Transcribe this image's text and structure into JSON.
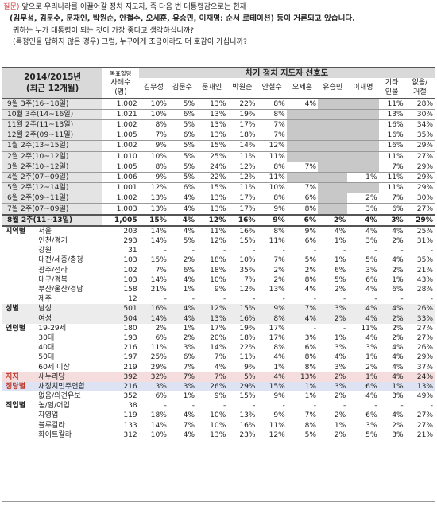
{
  "question": {
    "label": "질문)",
    "line1": "앞으로 우리나라를 이끌어갈 정치 지도자, 즉 다음 번 대통령감으로는 현재",
    "line2": "(김무성, 김문수, 문재인, 박원순, 안철수, 오세훈, 유승민, 이재명: 순서 로테이션) 등이 거론되고 있습니다.",
    "line3": "귀하는 누가 대통령이 되는 것이 가장 좋다고 생각하십니까?",
    "line4": "(특정인을 답하지 않은 경우) 그럼, 누구에게 조금이라도 더 호감이 가십니까?"
  },
  "table": {
    "period_header_1": "2014/2015년",
    "period_header_2": "(최근 12개월)",
    "sample_header_1": "목표할당",
    "sample_header_2": "사례수",
    "sample_header_3": "(명)",
    "group_header": "차기 정치 지도자 선호도",
    "candidates": [
      "김무성",
      "김문수",
      "문재인",
      "박원순",
      "안철수",
      "오세훈",
      "유승민",
      "이재명"
    ],
    "other_header_1": "기타",
    "other_header_2": "인물",
    "none_header_1": "없음/",
    "none_header_2": "거절",
    "trend_rows": [
      {
        "period": "9월 3주(16~18일)",
        "n": "1,002",
        "v": [
          "10%",
          "5%",
          "13%",
          "22%",
          "8%",
          "4%",
          "",
          "",
          "11%",
          "28%"
        ]
      },
      {
        "period": "10월 3주(14~16일)",
        "n": "1,021",
        "v": [
          "10%",
          "6%",
          "13%",
          "19%",
          "8%",
          "",
          "",
          "",
          "13%",
          "30%"
        ]
      },
      {
        "period": "11월 2주(11~13일)",
        "n": "1,002",
        "v": [
          "8%",
          "5%",
          "13%",
          "17%",
          "7%",
          "",
          "",
          "",
          "16%",
          "34%"
        ]
      },
      {
        "period": "12월 2주(09~11일)",
        "n": "1,005",
        "v": [
          "7%",
          "6%",
          "13%",
          "18%",
          "7%",
          "",
          "",
          "",
          "16%",
          "35%"
        ]
      },
      {
        "period": "1월 2주(13~15일)",
        "n": "1,002",
        "v": [
          "9%",
          "5%",
          "15%",
          "14%",
          "12%",
          "",
          "",
          "",
          "16%",
          "29%"
        ]
      },
      {
        "period": "2월 2주(10~12일)",
        "n": "1,010",
        "v": [
          "10%",
          "5%",
          "25%",
          "11%",
          "11%",
          "",
          "",
          "",
          "11%",
          "27%"
        ]
      },
      {
        "period": "3월 2주(10~12일)",
        "n": "1,005",
        "v": [
          "8%",
          "5%",
          "24%",
          "12%",
          "8%",
          "7%",
          "",
          "",
          "7%",
          "29%"
        ]
      },
      {
        "period": "4월 2주(07~09일)",
        "n": "1,006",
        "v": [
          "9%",
          "5%",
          "22%",
          "12%",
          "11%",
          "",
          "",
          "1%",
          "11%",
          "29%"
        ]
      },
      {
        "period": "5월 2주(12~14일)",
        "n": "1,001",
        "v": [
          "12%",
          "6%",
          "15%",
          "11%",
          "10%",
          "7%",
          "",
          "",
          "11%",
          "29%"
        ]
      },
      {
        "period": "6월 2주(09~11일)",
        "n": "1,002",
        "v": [
          "13%",
          "4%",
          "13%",
          "17%",
          "8%",
          "6%",
          "",
          "2%",
          "7%",
          "30%"
        ]
      },
      {
        "period": "7월 2주(07~09일)",
        "n": "1,003",
        "v": [
          "13%",
          "4%",
          "13%",
          "17%",
          "9%",
          "8%",
          "",
          "3%",
          "6%",
          "27%"
        ]
      }
    ],
    "latest_row": {
      "period": "8월 2주(11~13일)",
      "n": "1,005",
      "v": [
        "15%",
        "4%",
        "12%",
        "16%",
        "9%",
        "6%",
        "2%",
        "4%",
        "3%",
        "29%"
      ]
    },
    "segment_rows": [
      {
        "seg": "지역별",
        "sub": "서울",
        "n": "203",
        "v": [
          "14%",
          "4%",
          "11%",
          "16%",
          "8%",
          "9%",
          "4%",
          "4%",
          "4%",
          "25%"
        ]
      },
      {
        "seg": "",
        "sub": "인천/경기",
        "n": "293",
        "v": [
          "14%",
          "5%",
          "12%",
          "15%",
          "11%",
          "6%",
          "1%",
          "3%",
          "2%",
          "31%"
        ]
      },
      {
        "seg": "",
        "sub": "강원",
        "n": "31",
        "v": [
          "-",
          "-",
          "-",
          "-",
          "-",
          "-",
          "-",
          "-",
          "-",
          "-"
        ]
      },
      {
        "seg": "",
        "sub": "대전/세종/충청",
        "n": "103",
        "v": [
          "15%",
          "2%",
          "18%",
          "10%",
          "7%",
          "5%",
          "1%",
          "5%",
          "4%",
          "35%"
        ]
      },
      {
        "seg": "",
        "sub": "광주/전라",
        "n": "102",
        "v": [
          "7%",
          "6%",
          "18%",
          "35%",
          "2%",
          "2%",
          "6%",
          "3%",
          "2%",
          "21%"
        ]
      },
      {
        "seg": "",
        "sub": "대구/경북",
        "n": "103",
        "v": [
          "14%",
          "4%",
          "10%",
          "7%",
          "2%",
          "8%",
          "5%",
          "6%",
          "1%",
          "43%"
        ]
      },
      {
        "seg": "",
        "sub": "부산/울산/경남",
        "n": "158",
        "v": [
          "21%",
          "1%",
          "9%",
          "12%",
          "13%",
          "4%",
          "2%",
          "4%",
          "6%",
          "28%"
        ]
      },
      {
        "seg": "",
        "sub": "제주",
        "n": "12",
        "v": [
          "-",
          "-",
          "-",
          "-",
          "-",
          "-",
          "-",
          "-",
          "-",
          "-"
        ]
      },
      {
        "seg": "성별",
        "sub": "남성",
        "n": "501",
        "v": [
          "16%",
          "4%",
          "12%",
          "15%",
          "9%",
          "7%",
          "3%",
          "4%",
          "4%",
          "26%"
        ]
      },
      {
        "seg": "",
        "sub": "여성",
        "n": "504",
        "v": [
          "14%",
          "4%",
          "13%",
          "16%",
          "8%",
          "4%",
          "2%",
          "4%",
          "2%",
          "33%"
        ]
      },
      {
        "seg": "연령별",
        "sub": "19-29세",
        "n": "180",
        "v": [
          "2%",
          "1%",
          "17%",
          "19%",
          "17%",
          "-",
          "-",
          "11%",
          "2%",
          "27%"
        ]
      },
      {
        "seg": "",
        "sub": "30대",
        "n": "193",
        "v": [
          "6%",
          "2%",
          "20%",
          "18%",
          "17%",
          "3%",
          "1%",
          "4%",
          "2%",
          "27%"
        ]
      },
      {
        "seg": "",
        "sub": "40대",
        "n": "216",
        "v": [
          "11%",
          "3%",
          "14%",
          "22%",
          "8%",
          "6%",
          "3%",
          "3%",
          "4%",
          "26%"
        ]
      },
      {
        "seg": "",
        "sub": "50대",
        "n": "197",
        "v": [
          "25%",
          "6%",
          "7%",
          "11%",
          "4%",
          "8%",
          "4%",
          "1%",
          "4%",
          "29%"
        ]
      },
      {
        "seg": "",
        "sub": "60세 이상",
        "n": "219",
        "v": [
          "29%",
          "7%",
          "4%",
          "9%",
          "1%",
          "8%",
          "3%",
          "2%",
          "4%",
          "37%"
        ]
      },
      {
        "seg": "지지",
        "sub": "새누리당",
        "n": "392",
        "v": [
          "32%",
          "7%",
          "7%",
          "5%",
          "4%",
          "13%",
          "2%",
          "1%",
          "4%",
          "24%"
        ]
      },
      {
        "seg": "정당별",
        "sub": "새정치민주연합",
        "n": "216",
        "v": [
          "3%",
          "3%",
          "26%",
          "29%",
          "15%",
          "1%",
          "3%",
          "6%",
          "1%",
          "13%"
        ]
      },
      {
        "seg": "",
        "sub": "없음/의견유보",
        "n": "352",
        "v": [
          "6%",
          "1%",
          "9%",
          "15%",
          "9%",
          "1%",
          "2%",
          "4%",
          "3%",
          "49%"
        ]
      },
      {
        "seg": "직업별",
        "sub": "농/임/어업",
        "n": "38",
        "v": [
          "-",
          "-",
          "-",
          "-",
          "-",
          "-",
          "-",
          "-",
          "-",
          "-"
        ]
      },
      {
        "seg": "",
        "sub": "자영업",
        "n": "119",
        "v": [
          "18%",
          "4%",
          "10%",
          "13%",
          "9%",
          "7%",
          "2%",
          "6%",
          "4%",
          "27%"
        ]
      },
      {
        "seg": "",
        "sub": "블루칼라",
        "n": "133",
        "v": [
          "14%",
          "7%",
          "10%",
          "16%",
          "11%",
          "8%",
          "1%",
          "3%",
          "2%",
          "27%"
        ]
      },
      {
        "seg": "",
        "sub": "화이트칼라",
        "n": "312",
        "v": [
          "10%",
          "4%",
          "13%",
          "23%",
          "12%",
          "5%",
          "2%",
          "5%",
          "3%",
          "21%"
        ]
      }
    ]
  }
}
